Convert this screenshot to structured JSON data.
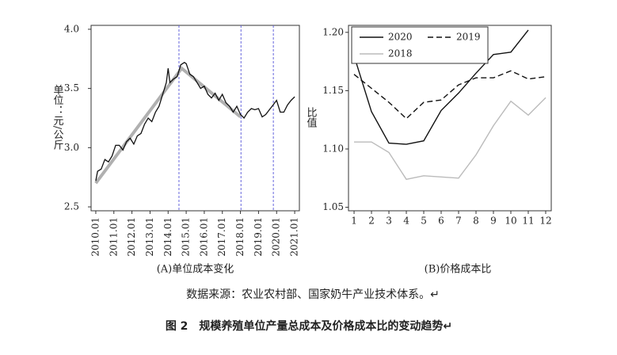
{
  "chart_data": [
    {
      "type": "line",
      "title": "(A)单位成本变化",
      "ylabel": "单位：元/公斤",
      "xlim": [
        2009.74,
        2021.26
      ],
      "xticks": [
        {
          "value": 2010,
          "label": "2010.01"
        },
        {
          "value": 2011,
          "label": "2011.01"
        },
        {
          "value": 2012,
          "label": "2012.01"
        },
        {
          "value": 2013,
          "label": "2013.01"
        },
        {
          "value": 2014,
          "label": "2014.01"
        },
        {
          "value": 2015,
          "label": "2015.01"
        },
        {
          "value": 2016,
          "label": "2016.01"
        },
        {
          "value": 2017,
          "label": "2017.01"
        },
        {
          "value": 2018,
          "label": "2018.01"
        },
        {
          "value": 2019,
          "label": "2019.01"
        },
        {
          "value": 2020,
          "label": "2020.01"
        },
        {
          "value": 2021,
          "label": "2021.01"
        }
      ],
      "ylim": [
        2.467,
        4.033
      ],
      "yticks": [
        2.5,
        {
          "value": 3,
          "label": "3.0"
        },
        3.5,
        {
          "value": 4,
          "label": "4.0"
        }
      ],
      "vlines": {
        "color": "#6666dd",
        "x": [
          2014.6,
          2018.03,
          2019.82
        ]
      },
      "series": [
        {
          "color": "#b0b0b0",
          "width": 4,
          "x": [
            2010.0,
            2014.75,
            2018.0
          ],
          "values": [
            2.7,
            3.67,
            3.26
          ]
        },
        {
          "color": "#111111",
          "width": 1.3,
          "x": [
            2010.0,
            2010.1,
            2010.3,
            2010.5,
            2010.7,
            2010.9,
            2011.1,
            2011.3,
            2011.5,
            2011.7,
            2011.9,
            2012.1,
            2012.3,
            2012.5,
            2012.7,
            2012.9,
            2013.1,
            2013.3,
            2013.5,
            2013.7,
            2013.9,
            2014.0,
            2014.1,
            2014.3,
            2014.5,
            2014.7,
            2014.9,
            2015.0,
            2015.2,
            2015.4,
            2015.6,
            2015.8,
            2016.0,
            2016.2,
            2016.4,
            2016.6,
            2016.8,
            2017.0,
            2017.2,
            2017.4,
            2017.6,
            2017.8,
            2018.0,
            2018.2,
            2018.4,
            2018.6,
            2018.8,
            2019.0,
            2019.2,
            2019.4,
            2019.6,
            2019.8,
            2020.0,
            2020.2,
            2020.4,
            2020.6,
            2020.8,
            2021.0
          ],
          "values": [
            2.72,
            2.8,
            2.82,
            2.9,
            2.88,
            2.93,
            3.02,
            3.02,
            2.98,
            3.05,
            3.08,
            3.03,
            3.1,
            3.12,
            3.2,
            3.25,
            3.22,
            3.3,
            3.35,
            3.45,
            3.55,
            3.67,
            3.55,
            3.58,
            3.6,
            3.7,
            3.72,
            3.71,
            3.62,
            3.6,
            3.55,
            3.5,
            3.52,
            3.45,
            3.42,
            3.46,
            3.4,
            3.45,
            3.38,
            3.35,
            3.3,
            3.35,
            3.28,
            3.25,
            3.3,
            3.33,
            3.32,
            3.33,
            3.26,
            3.28,
            3.32,
            3.36,
            3.4,
            3.3,
            3.3,
            3.36,
            3.4,
            3.43
          ]
        }
      ]
    },
    {
      "type": "line",
      "title": "(B)价格成本比",
      "ylabel": "比值",
      "legend": "upper left",
      "x": [
        1,
        2,
        3,
        4,
        5,
        6,
        7,
        8,
        9,
        10,
        11,
        12
      ],
      "xlim": [
        0.68,
        12.32
      ],
      "xticks": [
        1,
        2,
        3,
        4,
        5,
        6,
        7,
        8,
        9,
        10,
        11,
        12
      ],
      "ylim": [
        1.047,
        1.206
      ],
      "yticks": [
        1.05,
        {
          "value": 1.1,
          "label": "1.10"
        },
        1.15,
        {
          "value": 1.2,
          "label": "1.20"
        }
      ],
      "series": [
        {
          "name": "2020",
          "color": "#111111",
          "width": 1.4,
          "values": [
            1.18,
            1.132,
            1.105,
            1.104,
            1.107,
            1.133,
            1.148,
            1.165,
            1.181,
            1.183,
            1.202,
            null
          ]
        },
        {
          "name": "2019",
          "color": "#111111",
          "width": 1.4,
          "dash": true,
          "values": [
            1.164,
            1.152,
            1.14,
            1.126,
            1.14,
            1.142,
            1.155,
            1.161,
            1.161,
            1.167,
            1.16,
            1.162
          ]
        },
        {
          "name": "2018",
          "color": "#bbbbbb",
          "width": 1.4,
          "values": [
            1.106,
            1.106,
            1.097,
            1.074,
            1.077,
            1.076,
            1.075,
            1.095,
            1.12,
            1.141,
            1.129,
            1.144
          ]
        }
      ]
    }
  ],
  "source": "数据来源：农业农村部、国家奶牛产业技术体系。↵",
  "figure_caption": "图 2　规模养殖单位产量总成本及价格成本比的变动趋势↵"
}
